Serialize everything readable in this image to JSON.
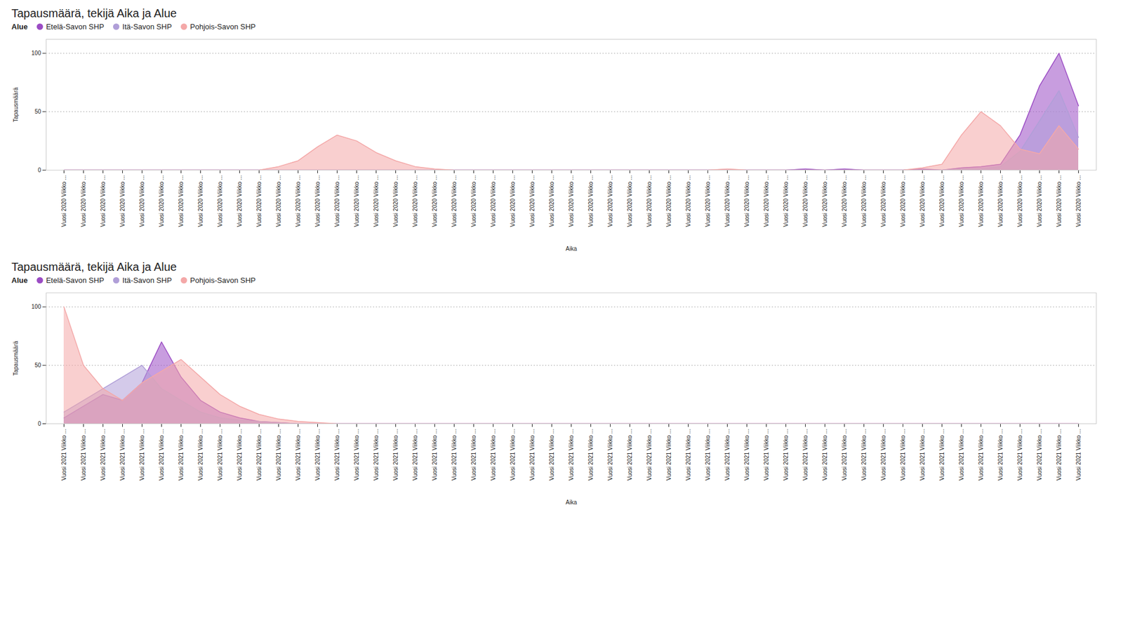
{
  "chart_data": [
    {
      "type": "area",
      "title": "Tapausmäärä, tekijä Aika ja Alue",
      "legend_title": "Alue",
      "x_label": "Aika",
      "y_label": "Tapausmäärä",
      "categories": [
        "Vuosi 2020 Viikko ...",
        "Vuosi 2020 Viikko ...",
        "Vuosi 2020 Viikko ...",
        "Vuosi 2020 Viikko ...",
        "Vuosi 2020 Viikko ...",
        "Vuosi 2020 Viikko ...",
        "Vuosi 2020 Viikko ...",
        "Vuosi 2020 Viikko ...",
        "Vuosi 2020 Viikko ...",
        "Vuosi 2020 Viikko ...",
        "Vuosi 2020 Viikko ...",
        "Vuosi 2020 Viikko ...",
        "Vuosi 2020 Viikko ...",
        "Vuosi 2020 Viikko ...",
        "Vuosi 2020 Viikko ...",
        "Vuosi 2020 Viikko ...",
        "Vuosi 2020 Viikko ...",
        "Vuosi 2020 Viikko ...",
        "Vuosi 2020 Viikko ...",
        "Vuosi 2020 Viikko ...",
        "Vuosi 2020 Viikko ...",
        "Vuosi 2020 Viikko ...",
        "Vuosi 2020 Viikko ...",
        "Vuosi 2020 Viikko ...",
        "Vuosi 2020 Viikko ...",
        "Vuosi 2020 Viikko ...",
        "Vuosi 2020 Viikko ...",
        "Vuosi 2020 Viikko ...",
        "Vuosi 2020 Viikko ...",
        "Vuosi 2020 Viikko ...",
        "Vuosi 2020 Viikko ...",
        "Vuosi 2020 Viikko ...",
        "Vuosi 2020 Viikko ...",
        "Vuosi 2020 Viikko ...",
        "Vuosi 2020 Viikko ...",
        "Vuosi 2020 Viikko ...",
        "Vuosi 2020 Viikko ...",
        "Vuosi 2020 Viikko ...",
        "Vuosi 2020 Viikko ...",
        "Vuosi 2020 Viikko ...",
        "Vuosi 2020 Viikko ...",
        "Vuosi 2020 Viikko ...",
        "Vuosi 2020 Viikko ...",
        "Vuosi 2020 Viikko ...",
        "Vuosi 2020 Viikko ...",
        "Vuosi 2020 Viikko ...",
        "Vuosi 2020 Viikko ...",
        "Vuosi 2020 Viikko ...",
        "Vuosi 2020 Viikko ...",
        "Vuosi 2020 Viikko ...",
        "Vuosi 2020 Viikko ...",
        "Vuosi 2020 Viikko ...",
        "Vuosi 2020 Viikko ..."
      ],
      "series": [
        {
          "name": "Etelä-Savon SHP",
          "color": "#9B4CC4",
          "values": [
            0,
            0,
            0,
            0,
            0,
            0,
            0,
            0,
            0,
            0,
            0,
            0,
            0,
            0,
            0,
            0,
            0,
            0,
            0,
            0,
            0,
            0,
            0,
            0,
            0,
            0,
            0,
            0,
            0,
            0,
            0,
            0,
            0,
            0,
            0,
            0,
            0,
            0,
            1,
            0,
            1,
            0,
            0,
            0,
            1,
            0,
            2,
            3,
            5,
            30,
            72,
            100,
            55
          ]
        },
        {
          "name": "Itä-Savon SHP",
          "color": "#B09FD8",
          "values": [
            0,
            0,
            0,
            0,
            0,
            0,
            0,
            0,
            0,
            0,
            0,
            0,
            0,
            0,
            0,
            0,
            0,
            0,
            0,
            0,
            0,
            0,
            0,
            0,
            0,
            0,
            0,
            0,
            0,
            0,
            0,
            0,
            0,
            0,
            0,
            0,
            0,
            0,
            0,
            0,
            0,
            0,
            0,
            0,
            0,
            0,
            1,
            1,
            3,
            16,
            42,
            68,
            28
          ]
        },
        {
          "name": "Pohjois-Savon SHP",
          "color": "#F4A8A8",
          "values": [
            0,
            0,
            0,
            0,
            0,
            0,
            0,
            0,
            0,
            0,
            0,
            3,
            8,
            20,
            30,
            25,
            15,
            8,
            3,
            1,
            0,
            0,
            0,
            0,
            0,
            0,
            0,
            0,
            0,
            0,
            0,
            0,
            0,
            0,
            1,
            0,
            0,
            0,
            0,
            0,
            0,
            0,
            0,
            0,
            2,
            5,
            30,
            50,
            38,
            18,
            14,
            38,
            18
          ]
        }
      ],
      "ylim": [
        0,
        112
      ],
      "yticks": [
        0,
        50,
        100
      ],
      "grid": true,
      "legend": "upper left"
    },
    {
      "type": "area",
      "title": "Tapausmäärä, tekijä Aika ja Alue",
      "legend_title": "Alue",
      "x_label": "Aika",
      "y_label": "Tapausmäärä",
      "categories": [
        "Vuosi 2021 Viikko ...",
        "Vuosi 2021 Viikko ...",
        "Vuosi 2021 Viikko ...",
        "Vuosi 2021 Viikko ...",
        "Vuosi 2021 Viikko ...",
        "Vuosi 2021 Viikko ...",
        "Vuosi 2021 Viikko ...",
        "Vuosi 2021 Viikko ...",
        "Vuosi 2021 Viikko ...",
        "Vuosi 2021 Viikko ...",
        "Vuosi 2021 Viikko ...",
        "Vuosi 2021 Viikko ...",
        "Vuosi 2021 Viikko ...",
        "Vuosi 2021 Viikko ...",
        "Vuosi 2021 Viikko ...",
        "Vuosi 2021 Viikko ...",
        "Vuosi 2021 Viikko ...",
        "Vuosi 2021 Viikko ...",
        "Vuosi 2021 Viikko ...",
        "Vuosi 2021 Viikko ...",
        "Vuosi 2021 Viikko ...",
        "Vuosi 2021 Viikko ...",
        "Vuosi 2021 Viikko ...",
        "Vuosi 2021 Viikko ...",
        "Vuosi 2021 Viikko ...",
        "Vuosi 2021 Viikko ...",
        "Vuosi 2021 Viikko ...",
        "Vuosi 2021 Viikko ...",
        "Vuosi 2021 Viikko ...",
        "Vuosi 2021 Viikko ...",
        "Vuosi 2021 Viikko ...",
        "Vuosi 2021 Viikko ...",
        "Vuosi 2021 Viikko ...",
        "Vuosi 2021 Viikko ...",
        "Vuosi 2021 Viikko ...",
        "Vuosi 2021 Viikko ...",
        "Vuosi 2021 Viikko ...",
        "Vuosi 2021 Viikko ...",
        "Vuosi 2021 Viikko ...",
        "Vuosi 2021 Viikko ...",
        "Vuosi 2021 Viikko ...",
        "Vuosi 2021 Viikko ...",
        "Vuosi 2021 Viikko ...",
        "Vuosi 2021 Viikko ...",
        "Vuosi 2021 Viikko ...",
        "Vuosi 2021 Viikko ...",
        "Vuosi 2021 Viikko ...",
        "Vuosi 2021 Viikko ...",
        "Vuosi 2021 Viikko ...",
        "Vuosi 2021 Viikko ...",
        "Vuosi 2021 Viikko ...",
        "Vuosi 2021 Viikko ...",
        "Vuosi 2021 Viikko ..."
      ],
      "series": [
        {
          "name": "Etelä-Savon SHP",
          "color": "#9B4CC4",
          "values": [
            5,
            15,
            25,
            20,
            35,
            70,
            40,
            20,
            10,
            5,
            2,
            1,
            0,
            0,
            0,
            0,
            0,
            0,
            0,
            0,
            0,
            0,
            0,
            0,
            0,
            0,
            0,
            0,
            0,
            0,
            0,
            0,
            0,
            0,
            0,
            0,
            0,
            0,
            0,
            0,
            0,
            0,
            0,
            0,
            0,
            0,
            0,
            0,
            0,
            0,
            0,
            0,
            0
          ]
        },
        {
          "name": "Itä-Savon SHP",
          "color": "#B09FD8",
          "values": [
            10,
            20,
            30,
            40,
            50,
            30,
            20,
            10,
            5,
            3,
            2,
            1,
            0,
            0,
            0,
            0,
            0,
            0,
            0,
            0,
            0,
            0,
            0,
            0,
            0,
            0,
            0,
            0,
            0,
            0,
            0,
            0,
            0,
            0,
            0,
            0,
            0,
            0,
            0,
            0,
            0,
            0,
            0,
            0,
            0,
            0,
            0,
            0,
            0,
            0,
            0,
            0,
            0
          ]
        },
        {
          "name": "Pohjois-Savon SHP",
          "color": "#F4A8A8",
          "values": [
            100,
            50,
            30,
            20,
            35,
            45,
            55,
            40,
            25,
            15,
            8,
            4,
            2,
            1,
            0,
            0,
            0,
            0,
            0,
            0,
            0,
            0,
            0,
            0,
            0,
            0,
            0,
            0,
            0,
            0,
            0,
            0,
            0,
            0,
            0,
            0,
            0,
            0,
            0,
            0,
            0,
            0,
            0,
            0,
            0,
            0,
            0,
            0,
            0,
            0,
            0,
            0,
            0
          ]
        }
      ],
      "ylim": [
        0,
        112
      ],
      "yticks": [
        0,
        50,
        100
      ],
      "grid": true,
      "legend": "upper left"
    }
  ]
}
